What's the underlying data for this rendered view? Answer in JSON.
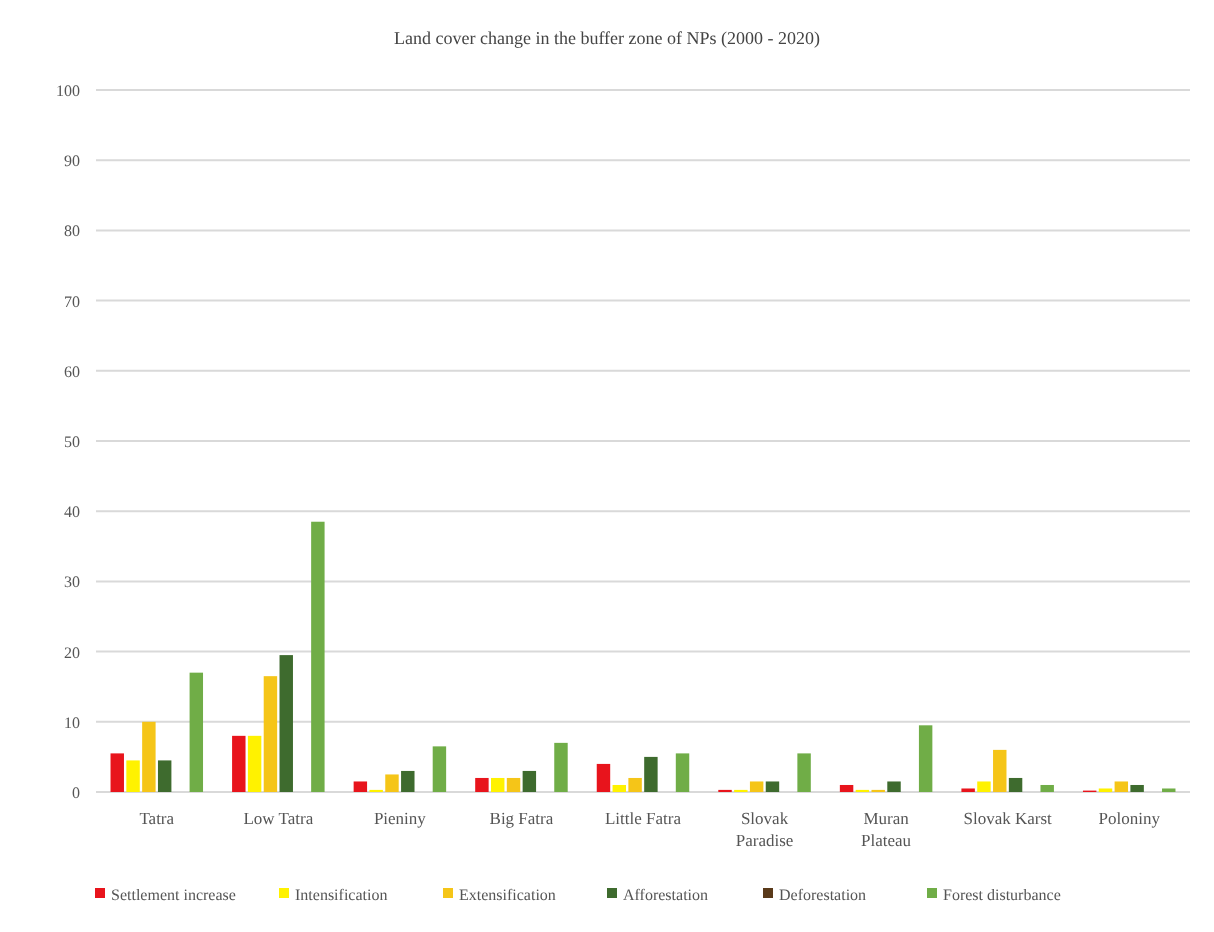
{
  "chart_data": {
    "type": "bar",
    "title": "Land cover change in the buffer zone of NPs (2000 - 2020)",
    "categories": [
      "Tatra",
      "Low Tatra",
      "Pieniny",
      "Big Fatra",
      "Little Fatra",
      "Slovak Paradise",
      "Muran Plateau",
      "Slovak Karst",
      "Poloniny"
    ],
    "series": [
      {
        "name": "Settlement increase",
        "color": "#e8141c",
        "values": [
          5.5,
          8,
          1.5,
          2,
          4,
          0.3,
          1,
          0.5,
          0.2
        ]
      },
      {
        "name": "Intensification",
        "color": "#fff200",
        "values": [
          4.5,
          8,
          0.3,
          2,
          1,
          0.3,
          0.3,
          1.5,
          0.5
        ]
      },
      {
        "name": "Extensification",
        "color": "#f5c518",
        "values": [
          10,
          16.5,
          2.5,
          2,
          2,
          1.5,
          0.3,
          6,
          1.5
        ]
      },
      {
        "name": "Afforestation",
        "color": "#3e6b2e",
        "values": [
          4.5,
          19.5,
          3,
          3,
          5,
          1.5,
          1.5,
          2,
          1
        ]
      },
      {
        "name": "Deforestation",
        "color": "#5a3a1a",
        "values": [
          0,
          0,
          0,
          0,
          0,
          0,
          0,
          0,
          0
        ]
      },
      {
        "name": "Forest disturbance",
        "color": "#70ad47",
        "values": [
          17,
          38.5,
          6.5,
          7,
          5.5,
          5.5,
          9.5,
          1,
          0.5
        ]
      }
    ],
    "ylim": [
      0,
      100
    ],
    "yticks": [
      0,
      10,
      20,
      30,
      40,
      50,
      60,
      70,
      80,
      90,
      100
    ],
    "grid": "y",
    "legend": "bottom"
  }
}
